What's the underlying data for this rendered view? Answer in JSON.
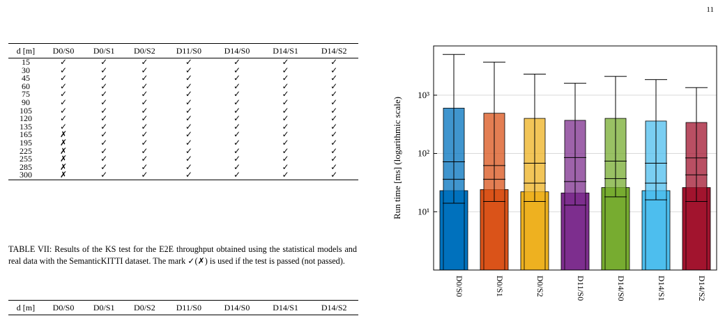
{
  "page_number": "11",
  "table7": {
    "headers": [
      "d [m]",
      "D0/S0",
      "D0/S1",
      "D0/S2",
      "D11/S0",
      "D14/S0",
      "D14/S1",
      "D14/S2"
    ],
    "rows": [
      [
        "15",
        "✓",
        "✓",
        "✓",
        "✓",
        "✓",
        "✓",
        "✓"
      ],
      [
        "30",
        "✓",
        "✓",
        "✓",
        "✓",
        "✓",
        "✓",
        "✓"
      ],
      [
        "45",
        "✓",
        "✓",
        "✓",
        "✓",
        "✓",
        "✓",
        "✓"
      ],
      [
        "60",
        "✓",
        "✓",
        "✓",
        "✓",
        "✓",
        "✓",
        "✓"
      ],
      [
        "75",
        "✓",
        "✓",
        "✓",
        "✓",
        "✓",
        "✓",
        "✓"
      ],
      [
        "90",
        "✓",
        "✓",
        "✓",
        "✓",
        "✓",
        "✓",
        "✓"
      ],
      [
        "105",
        "✓",
        "✓",
        "✓",
        "✓",
        "✓",
        "✓",
        "✓"
      ],
      [
        "120",
        "✓",
        "✓",
        "✓",
        "✓",
        "✓",
        "✓",
        "✓"
      ],
      [
        "135",
        "✓",
        "✓",
        "✓",
        "✓",
        "✓",
        "✓",
        "✓"
      ],
      [
        "165",
        "✗",
        "✓",
        "✓",
        "✓",
        "✓",
        "✓",
        "✓"
      ],
      [
        "195",
        "✗",
        "✓",
        "✓",
        "✓",
        "✓",
        "✓",
        "✓"
      ],
      [
        "225",
        "✗",
        "✓",
        "✓",
        "✓",
        "✓",
        "✓",
        "✓"
      ],
      [
        "255",
        "✗",
        "✓",
        "✓",
        "✓",
        "✓",
        "✓",
        "✓"
      ],
      [
        "285",
        "✗",
        "✓",
        "✓",
        "✓",
        "✓",
        "✓",
        "✓"
      ],
      [
        "300",
        "✗",
        "✓",
        "✓",
        "✓",
        "✓",
        "✓",
        "✓"
      ]
    ],
    "caption": "TABLE VII: Results of the KS test for the E2E throughput obtained using the statistical models and real data with the SemanticKITTI dataset. The mark ✓(✗) is used if the test is passed (not passed)."
  },
  "table8": {
    "headers": [
      "d [m]",
      "D0/S0",
      "D0/S1",
      "D0/S2",
      "D11/S0",
      "D14/S0",
      "D14/S1",
      "D14/S2"
    ]
  },
  "chart_data": {
    "type": "bar",
    "scale": "log",
    "ylabel": "Run time [ms] (logarithmic scale)",
    "ylim": [
      1,
      7000
    ],
    "yticks": [
      {
        "value": 10,
        "label": "10¹"
      },
      {
        "value": 100,
        "label": "10²"
      },
      {
        "value": 1000,
        "label": "10³"
      }
    ],
    "grid": true,
    "categories": [
      "D0/S0",
      "D0/S1",
      "D0/S2",
      "D11/S0",
      "D14/S0",
      "D14/S1",
      "D14/S2"
    ],
    "colors": [
      "#0072BD",
      "#D95319",
      "#EDB120",
      "#7E2F8E",
      "#77AC30",
      "#4DBEEE",
      "#A2142F"
    ],
    "series": [
      {
        "stat": "median",
        "values": [
          23,
          24,
          22,
          21,
          26,
          23,
          26
        ]
      },
      {
        "stat": "mean",
        "values": [
          600,
          490,
          400,
          370,
          400,
          360,
          340
        ]
      },
      {
        "stat": "q1",
        "values": [
          36,
          36,
          31,
          33,
          37,
          31,
          43
        ]
      },
      {
        "stat": "q3",
        "values": [
          72,
          62,
          68,
          85,
          74,
          68,
          84
        ]
      },
      {
        "stat": "min",
        "values": [
          14,
          15,
          15,
          13,
          18,
          16,
          15
        ]
      },
      {
        "stat": "max",
        "values": [
          5000,
          3700,
          2300,
          1600,
          2100,
          1850,
          1350
        ]
      }
    ]
  }
}
